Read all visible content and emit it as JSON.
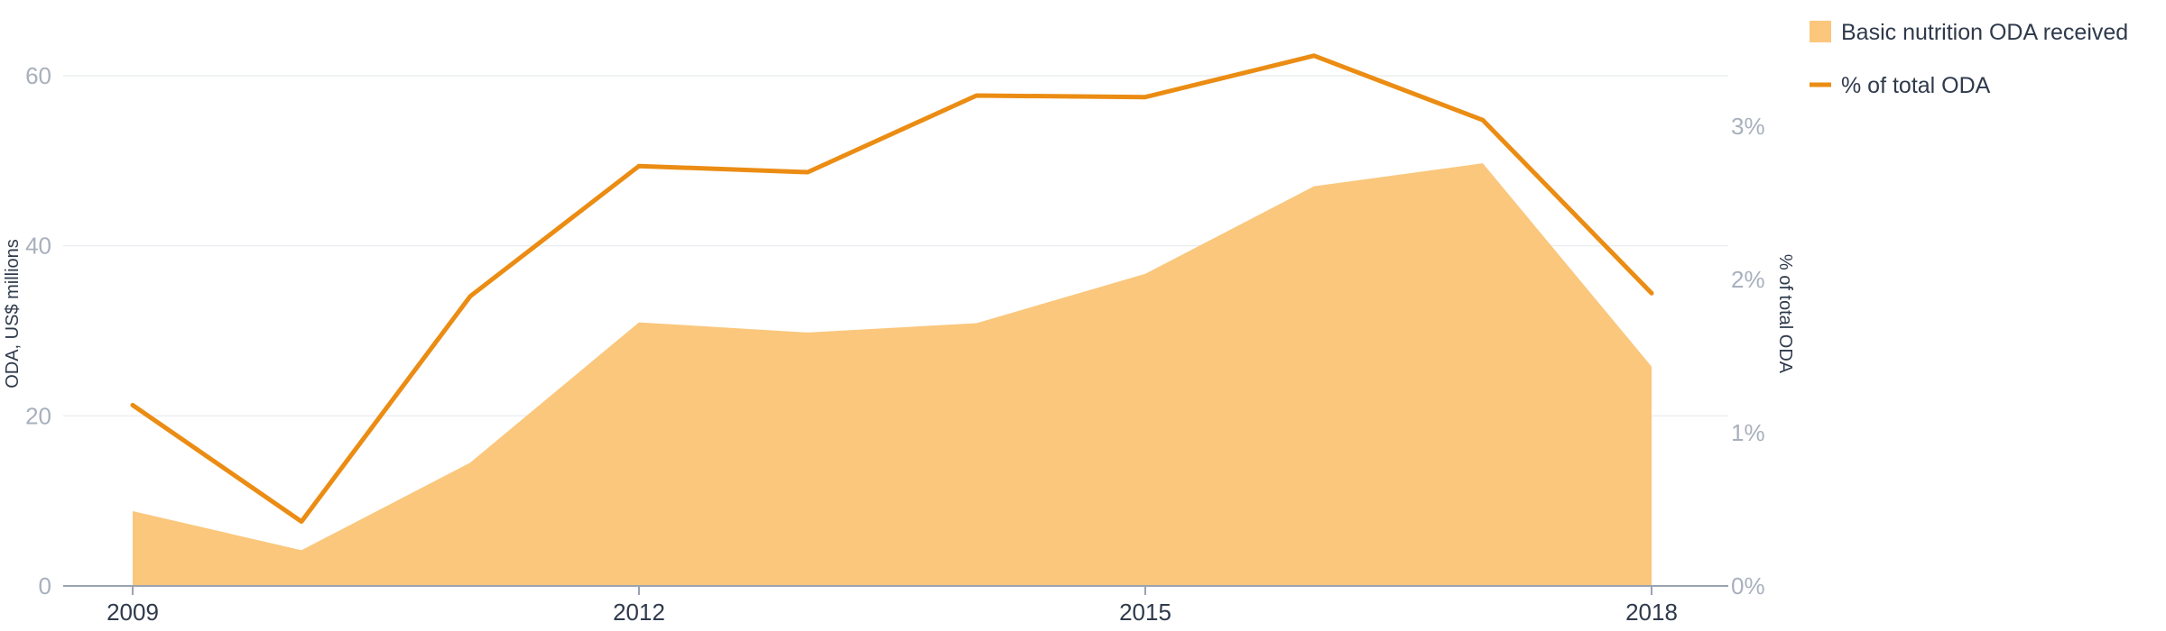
{
  "chart_data": {
    "type": "area",
    "title": "",
    "x": [
      2009,
      2010,
      2011,
      2012,
      2013,
      2014,
      2015,
      2016,
      2017,
      2018
    ],
    "x_tick_labels": [
      "2009",
      "2012",
      "2015",
      "2018"
    ],
    "x_tick_values": [
      2009,
      2012,
      2015,
      2018
    ],
    "series": [
      {
        "name": "Basic nutrition ODA received",
        "type": "area",
        "axis": "left",
        "color": "#fac77c",
        "values": [
          8.8,
          4.2,
          14.5,
          31.0,
          29.8,
          30.9,
          36.7,
          47.0,
          49.7,
          25.8
        ]
      },
      {
        "name": "% of total ODA",
        "type": "line",
        "axis": "right",
        "color": "#eb8c13",
        "values": [
          1.18,
          0.42,
          1.89,
          2.74,
          2.7,
          3.2,
          3.19,
          3.46,
          3.04,
          1.91
        ]
      }
    ],
    "left_axis": {
      "label": "ODA, US$ millions",
      "ylim": [
        0,
        60
      ],
      "ticks": [
        0,
        20,
        40,
        60
      ],
      "tick_labels": [
        "0",
        "20",
        "40",
        "60"
      ]
    },
    "right_axis": {
      "label": "% of total ODA",
      "ylim": [
        0,
        3.33
      ],
      "ticks": [
        0,
        1,
        2,
        3
      ],
      "tick_labels": [
        "0%",
        "1%",
        "2%",
        "3%"
      ]
    },
    "grid": true,
    "legend": {
      "placement": "top-right",
      "entries": [
        {
          "label": "Basic nutrition ODA received",
          "marker": "square",
          "color": "#fac77c"
        },
        {
          "label": "% of total ODA",
          "marker": "line",
          "color": "#eb8c13"
        }
      ]
    }
  }
}
